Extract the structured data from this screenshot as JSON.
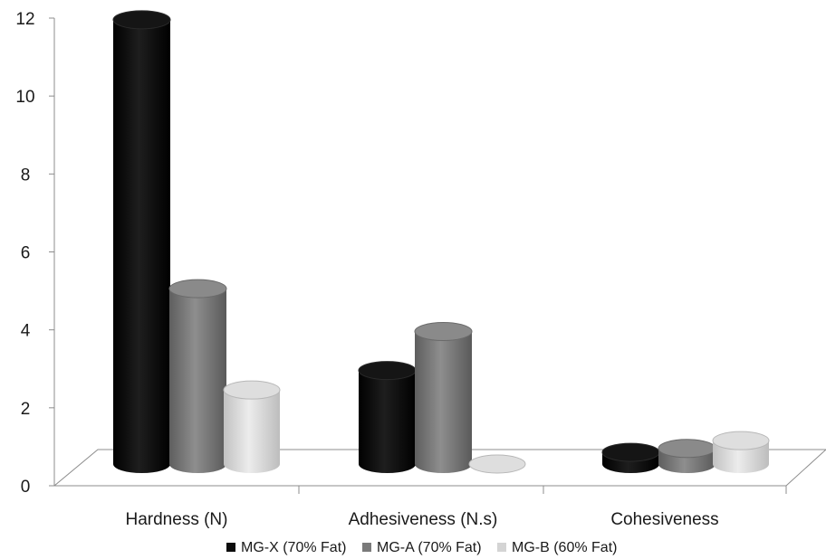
{
  "chart_data": {
    "type": "bar",
    "categories": [
      "Hardness (N)",
      "Adhesiveness (N.s)",
      "Cohesiveness"
    ],
    "series": [
      {
        "name": "MG-X (70% Fat)",
        "values": [
          11.4,
          2.4,
          0.3
        ]
      },
      {
        "name": "MG-A (70% Fat)",
        "values": [
          4.5,
          3.4,
          0.4
        ]
      },
      {
        "name": "MG-B (60% Fat)",
        "values": [
          1.9,
          0.0,
          0.6
        ]
      }
    ],
    "yticks": [
      "0",
      "2",
      "4",
      "6",
      "8",
      "10",
      "12"
    ],
    "ylim": [
      0,
      12
    ],
    "title": "",
    "xlabel": "",
    "ylabel": "",
    "legend_position": "bottom",
    "colors": {
      "MG-X (70% Fat)": "#0c0c0c",
      "MG-A (70% Fat)": "#7a7a7a",
      "MG-B (60% Fat)": "#d4d4d4"
    }
  }
}
